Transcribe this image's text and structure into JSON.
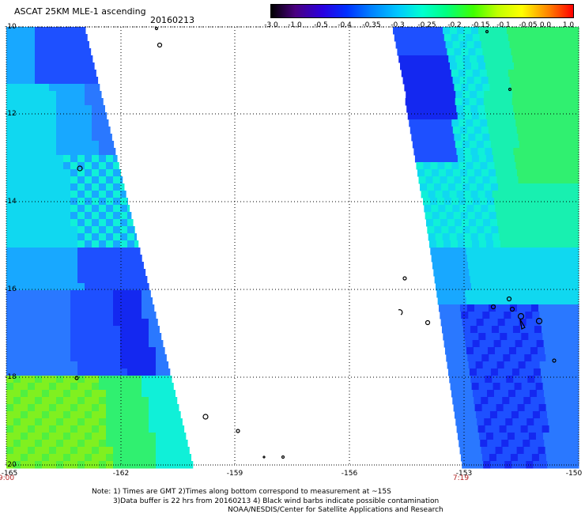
{
  "title": "ASCAT 25KM MLE-1 ascending",
  "date": "20160213",
  "colorbar": {
    "labels": [
      "-3.0",
      "-1.0",
      "-0.5",
      "-0.4",
      "-0.35",
      "-0.3",
      "-0.25",
      "-0.2",
      "-0.15",
      "-0.1",
      "-0.05",
      "0.0",
      "1.0"
    ],
    "colors": [
      "#000000",
      "#4a0080",
      "#2a00e0",
      "#0030ff",
      "#0080ff",
      "#00c8ff",
      "#00ffd0",
      "#00ff80",
      "#40ff00",
      "#c0ff00",
      "#ffff00",
      "#ff8000",
      "#ff0000"
    ]
  },
  "axes": {
    "lat_ticks": [
      "-10",
      "-12",
      "-14",
      "-16",
      "-18",
      "-20"
    ],
    "lon_ticks": [
      "-165",
      "-162",
      "-159",
      "-156",
      "-153",
      "-150"
    ]
  },
  "time_labels": {
    "left": "9:00",
    "right": "7:19"
  },
  "notes": [
    "Note: 1) Times are GMT 2)Times along bottom correspond to measurement at ~15S",
    "3)Data buffer is 22 hrs from 20160213 4) Black wind barbs indicate possible contamination",
    "NOAA/NESDIS/Center for Satellite Applications and Research"
  ]
}
